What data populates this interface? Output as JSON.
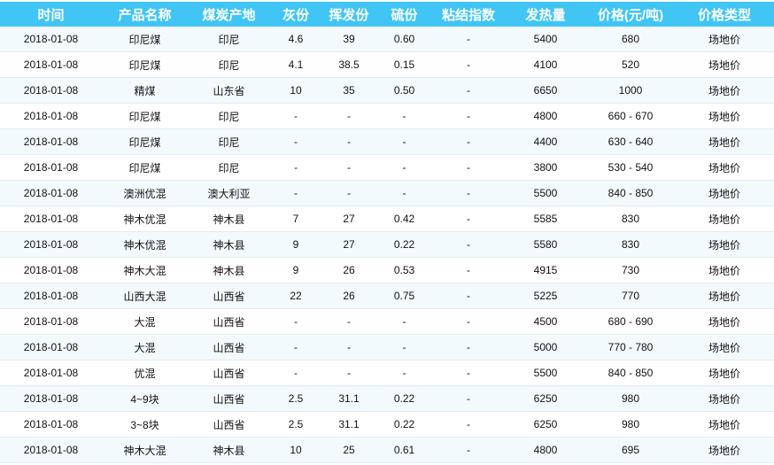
{
  "table": {
    "headers": [
      "时间",
      "产品名称",
      "煤炭产地",
      "灰份",
      "挥发份",
      "硫份",
      "粘结指数",
      "发热量",
      "价格(元/吨)",
      "价格类型"
    ],
    "rows": [
      [
        "2018-01-08",
        "印尼煤",
        "印尼",
        "4.6",
        "39",
        "0.60",
        "-",
        "5400",
        "680",
        "场地价"
      ],
      [
        "2018-01-08",
        "印尼煤",
        "印尼",
        "4.1",
        "38.5",
        "0.15",
        "-",
        "4100",
        "520",
        "场地价"
      ],
      [
        "2018-01-08",
        "精煤",
        "山东省",
        "10",
        "35",
        "0.50",
        "-",
        "6650",
        "1000",
        "场地价"
      ],
      [
        "2018-01-08",
        "印尼煤",
        "印尼",
        "-",
        "-",
        "-",
        "-",
        "4800",
        "660 - 670",
        "场地价"
      ],
      [
        "2018-01-08",
        "印尼煤",
        "印尼",
        "-",
        "-",
        "-",
        "-",
        "4400",
        "630 - 640",
        "场地价"
      ],
      [
        "2018-01-08",
        "印尼煤",
        "印尼",
        "-",
        "-",
        "-",
        "-",
        "3800",
        "530 - 540",
        "场地价"
      ],
      [
        "2018-01-08",
        "澳洲优混",
        "澳大利亚",
        "-",
        "-",
        "-",
        "-",
        "5500",
        "840 - 850",
        "场地价"
      ],
      [
        "2018-01-08",
        "神木优混",
        "神木县",
        "7",
        "27",
        "0.42",
        "-",
        "5585",
        "830",
        "场地价"
      ],
      [
        "2018-01-08",
        "神木优混",
        "神木县",
        "9",
        "27",
        "0.22",
        "-",
        "5580",
        "830",
        "场地价"
      ],
      [
        "2018-01-08",
        "神木大混",
        "神木县",
        "9",
        "26",
        "0.53",
        "-",
        "4915",
        "730",
        "场地价"
      ],
      [
        "2018-01-08",
        "山西大混",
        "山西省",
        "22",
        "26",
        "0.75",
        "-",
        "5225",
        "770",
        "场地价"
      ],
      [
        "2018-01-08",
        "大混",
        "山西省",
        "-",
        "-",
        "-",
        "-",
        "4500",
        "680 - 690",
        "场地价"
      ],
      [
        "2018-01-08",
        "大混",
        "山西省",
        "-",
        "-",
        "-",
        "-",
        "5000",
        "770 - 780",
        "场地价"
      ],
      [
        "2018-01-08",
        "优混",
        "山西省",
        "-",
        "-",
        "-",
        "-",
        "5500",
        "840 - 850",
        "场地价"
      ],
      [
        "2018-01-08",
        "4~9块",
        "山西省",
        "2.5",
        "31.1",
        "0.22",
        "-",
        "6250",
        "980",
        "场地价"
      ],
      [
        "2018-01-08",
        "3~8块",
        "山西省",
        "2.5",
        "31.1",
        "0.22",
        "-",
        "6250",
        "980",
        "场地价"
      ],
      [
        "2018-01-08",
        "神木大混",
        "神木县",
        "10",
        "25",
        "0.61",
        "-",
        "4800",
        "695",
        "场地价"
      ]
    ]
  },
  "colors": {
    "header_bg": "#40c5f5",
    "row_alt_bg": "#f3fafd"
  }
}
